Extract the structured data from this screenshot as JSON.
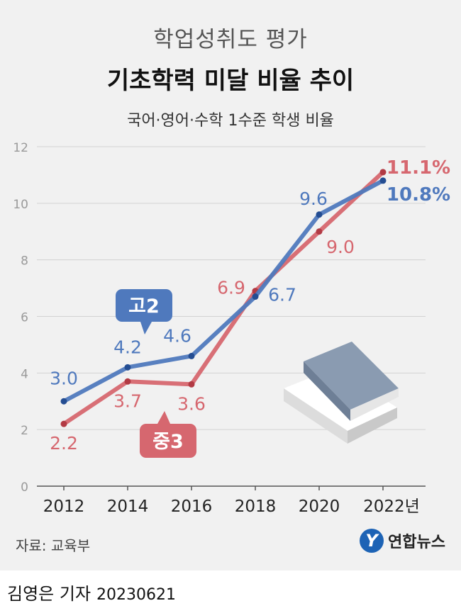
{
  "header": {
    "title_top": "학업성취도 평가",
    "title_main": "기초학력 미달 비율 추이",
    "subtitle": "국어·영어·수학 1수준 학생 비율"
  },
  "chart_data": {
    "type": "line",
    "x": [
      2012,
      2014,
      2016,
      2018,
      2020,
      2022
    ],
    "x_tick_labels": [
      "2012",
      "2014",
      "2016",
      "2018",
      "2020",
      "2022년"
    ],
    "ylim": [
      0,
      12
    ],
    "y_ticks": [
      0,
      2,
      4,
      6,
      8,
      10,
      12
    ],
    "grid": true,
    "series": [
      {
        "name": "고2",
        "values": [
          3.0,
          4.2,
          4.6,
          6.7,
          9.6,
          10.8
        ],
        "labels": [
          "3.0",
          "4.2",
          "4.6",
          "6.7",
          "9.6",
          "10.8%"
        ],
        "color": "#4f79bd"
      },
      {
        "name": "중3",
        "values": [
          2.2,
          3.7,
          3.6,
          6.9,
          9.0,
          11.1
        ],
        "labels": [
          "2.2",
          "3.7",
          "3.6",
          "6.9",
          "9.0",
          "11.1%"
        ],
        "color": "#d6676f"
      }
    ]
  },
  "source": "자료: 교육부",
  "logo": {
    "mark": "Y",
    "text": "연합뉴스"
  },
  "footer": {
    "author": "김영은 기자",
    "date": "20230621"
  }
}
